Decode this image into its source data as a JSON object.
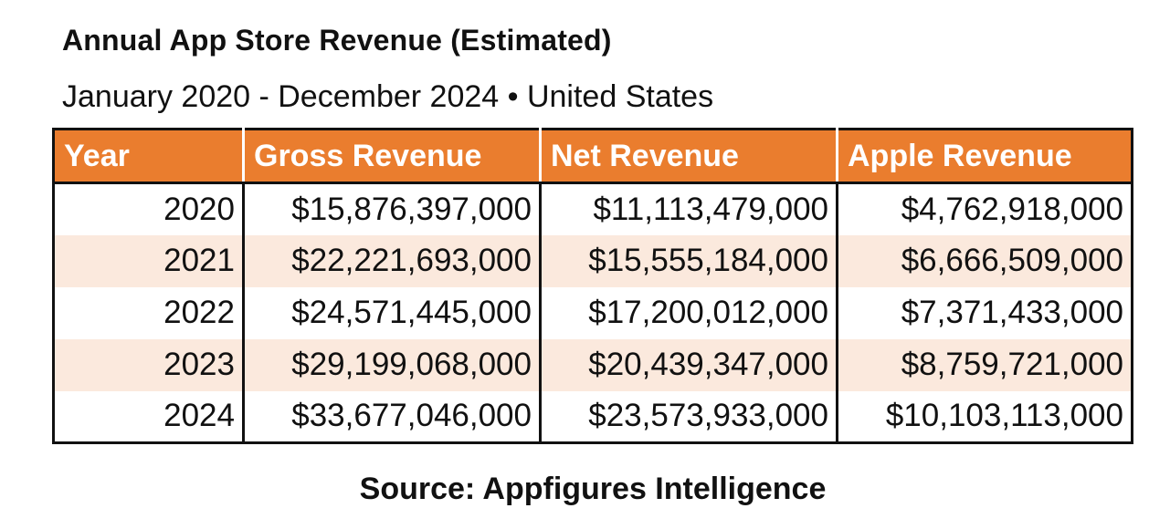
{
  "title": "Annual App Store Revenue (Estimated)",
  "subtitle": "January 2020 - December 2024 • United States",
  "table": {
    "headers": [
      "Year",
      "Gross Revenue",
      "Net Revenue",
      "Apple Revenue"
    ],
    "rows": [
      [
        "2020",
        "$15,876,397,000",
        "$11,113,479,000",
        "$4,762,918,000"
      ],
      [
        "2021",
        "$22,221,693,000",
        "$15,555,184,000",
        "$6,666,509,000"
      ],
      [
        "2022",
        "$24,571,445,000",
        "$17,200,012,000",
        "$7,371,433,000"
      ],
      [
        "2023",
        "$29,199,068,000",
        "$20,439,347,000",
        "$8,759,721,000"
      ],
      [
        "2024",
        "$33,677,046,000",
        "$23,573,933,000",
        "$10,103,113,000"
      ]
    ]
  },
  "source": "Source: Appfigures Intelligence",
  "colors": {
    "header_background": "#ea7d2e",
    "header_text": "#ffffff",
    "stripe_row": "#fbe9dd",
    "border": "#111111"
  }
}
